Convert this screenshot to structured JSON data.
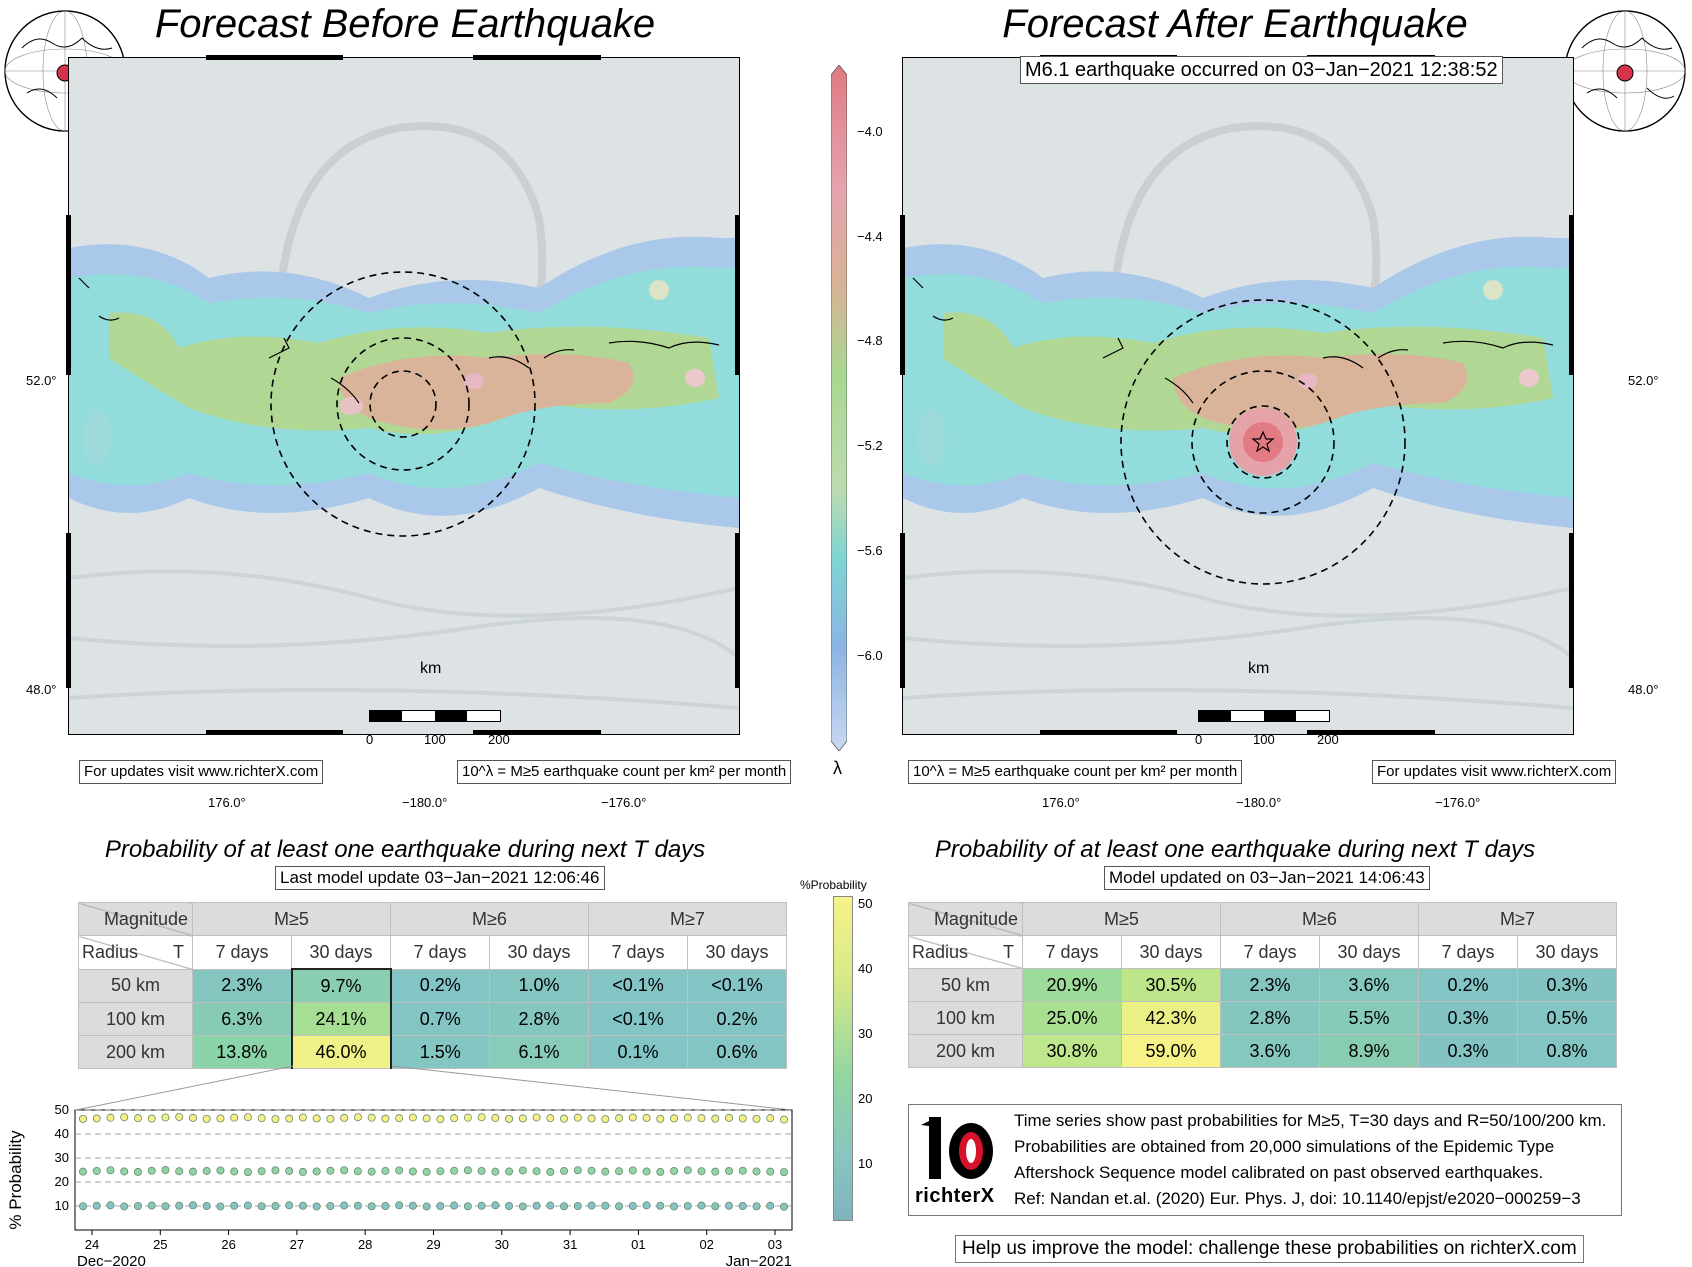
{
  "left_panel": {
    "title": "Forecast Before Earthquake",
    "scale_unit": "km",
    "scale_ticks": [
      "0",
      "100",
      "200"
    ],
    "url_note": "For updates visit www.richterX.com",
    "lambda_note": "10^λ = M≥5 earthquake count per km² per month",
    "lat_ticks": [
      "52.0°",
      "48.0°"
    ],
    "lon_ticks": [
      "176.0°",
      "−180.0°",
      "−176.0°"
    ]
  },
  "right_panel": {
    "title": "Forecast After Earthquake",
    "event_note": "M6.1 earthquake occurred on 03−Jan−2021 12:38:52",
    "scale_unit": "km",
    "scale_ticks": [
      "0",
      "100",
      "200"
    ],
    "url_note": "For updates visit www.richterX.com",
    "lambda_note": "10^λ = M≥5 earthquake count per km² per month",
    "lat_ticks": [
      "52.0°",
      "48.0°"
    ],
    "lon_ticks": [
      "176.0°",
      "−180.0°",
      "−176.0°"
    ]
  },
  "lambda_colorbar": {
    "label": "λ",
    "ticks": [
      "−4.0",
      "−4.4",
      "−4.8",
      "−5.2",
      "−5.6",
      "−6.0"
    ]
  },
  "prob_colorbar": {
    "label": "%Probability",
    "ticks": [
      "50",
      "40",
      "30",
      "20",
      "10"
    ]
  },
  "tables": {
    "left": {
      "heading": "Probability of at least one earthquake during next T days",
      "update_note": "Last model update 03−Jan−2021 12:06:46",
      "magnitude_label": "Magnitude",
      "radius_label": "Radius",
      "t_label": "T",
      "magnitudes": [
        "M≥5",
        "M≥6",
        "M≥7"
      ],
      "periods": [
        "7 days",
        "30 days",
        "7 days",
        "30 days",
        "7 days",
        "30 days"
      ],
      "rows": [
        {
          "radius": "50 km",
          "values": [
            "2.3%",
            "9.7%",
            "0.2%",
            "1.0%",
            "<0.1%",
            "<0.1%"
          ]
        },
        {
          "radius": "100 km",
          "values": [
            "6.3%",
            "24.1%",
            "0.7%",
            "2.8%",
            "<0.1%",
            "0.2%"
          ]
        },
        {
          "radius": "200 km",
          "values": [
            "13.8%",
            "46.0%",
            "1.5%",
            "6.1%",
            "0.1%",
            "0.6%"
          ]
        }
      ]
    },
    "right": {
      "heading": "Probability of at least one earthquake during next T days",
      "update_note": "Model updated on 03−Jan−2021 14:06:43",
      "magnitude_label": "Magnitude",
      "radius_label": "Radius",
      "t_label": "T",
      "magnitudes": [
        "M≥5",
        "M≥6",
        "M≥7"
      ],
      "periods": [
        "7 days",
        "30 days",
        "7 days",
        "30 days",
        "7 days",
        "30 days"
      ],
      "rows": [
        {
          "radius": "50 km",
          "values": [
            "20.9%",
            "30.5%",
            "2.3%",
            "3.6%",
            "0.2%",
            "0.3%"
          ]
        },
        {
          "radius": "100 km",
          "values": [
            "25.0%",
            "42.3%",
            "2.8%",
            "5.5%",
            "0.3%",
            "0.5%"
          ]
        },
        {
          "radius": "200 km",
          "values": [
            "30.8%",
            "59.0%",
            "3.6%",
            "8.9%",
            "0.3%",
            "0.8%"
          ]
        }
      ]
    }
  },
  "chart_data": {
    "type": "scatter",
    "title": "",
    "xlabel": "",
    "ylabel": "% Probability",
    "ylim": [
      0,
      50
    ],
    "y_ticks": [
      10,
      20,
      30,
      40,
      50
    ],
    "x_tick_labels": [
      "24",
      "25",
      "26",
      "27",
      "28",
      "29",
      "30",
      "31",
      "01",
      "02",
      "03"
    ],
    "x_month_left": "Dec−2020",
    "x_month_right": "Jan−2021",
    "series": [
      {
        "values": [
          46.3,
          46.5,
          46.8,
          47.0,
          46.6,
          46.4,
          46.9,
          47.1,
          46.7,
          46.3,
          46.5,
          46.8,
          47.0,
          46.6,
          46.2,
          46.4,
          46.9,
          46.5,
          46.3,
          46.7,
          47.0,
          46.8,
          46.4,
          46.6,
          46.9,
          46.5,
          46.2,
          46.6,
          46.8,
          47.0,
          46.7,
          46.3,
          46.5,
          46.9,
          46.6,
          46.4,
          46.8,
          46.5,
          46.2,
          46.6,
          46.9,
          46.7,
          46.3,
          46.5,
          46.8,
          46.6,
          46.4,
          46.7,
          46.5,
          46.3,
          46.6,
          46.0
        ]
      },
      {
        "values": [
          24.3,
          24.6,
          24.9,
          24.4,
          24.2,
          24.7,
          25.0,
          24.5,
          24.3,
          24.6,
          24.8,
          24.4,
          24.1,
          24.5,
          24.9,
          24.6,
          24.2,
          24.4,
          24.7,
          24.9,
          24.5,
          24.3,
          24.6,
          24.8,
          24.4,
          24.2,
          24.5,
          24.7,
          24.9,
          24.6,
          24.3,
          24.4,
          24.8,
          24.5,
          24.2,
          24.6,
          24.9,
          24.7,
          24.3,
          24.5,
          24.8,
          24.4,
          24.2,
          24.6,
          24.9,
          24.5,
          24.3,
          24.6,
          24.7,
          24.4,
          24.3,
          24.1
        ]
      },
      {
        "values": [
          9.9,
          10.1,
          10.3,
          9.8,
          10.0,
          10.2,
          9.9,
          10.1,
          10.3,
          10.0,
          9.8,
          10.1,
          10.2,
          9.9,
          10.0,
          10.3,
          10.1,
          9.8,
          10.0,
          10.2,
          10.1,
          9.9,
          10.0,
          10.3,
          10.1,
          9.8,
          10.0,
          10.2,
          9.9,
          10.1,
          10.3,
          10.0,
          9.8,
          10.1,
          10.2,
          9.9,
          10.0,
          10.2,
          10.1,
          9.9,
          10.0,
          10.3,
          10.1,
          9.8,
          10.0,
          10.2,
          9.9,
          10.1,
          10.0,
          9.9,
          10.1,
          9.7
        ]
      }
    ]
  },
  "info_box": {
    "logo_text": "richterX",
    "lines": [
      "Time series show past probabilities for M≥5, T=30 days and R=50/100/200 km.",
      "Probabilities are obtained from 20,000 simulations of the Epidemic Type",
      "Aftershock Sequence model calibrated on past observed earthquakes.",
      "Ref: Nandan et.al. (2020) Eur. Phys. J, doi: 10.1140/epjst/e2020−000259−3"
    ]
  },
  "footer_text": "Help us improve the model: challenge these probabilities on richterX.com",
  "colors": {
    "cb_teal": "#86c4c4",
    "cb_green": "#8fd4a4",
    "cb_yellow": "#f4ef86",
    "map_bg": "#dde2e4",
    "map_blue": "#8fb6e0",
    "map_cyan": "#7fd6d6",
    "map_green": "#a6d48a",
    "map_tan": "#d4aa86",
    "map_red": "#e46e76"
  }
}
